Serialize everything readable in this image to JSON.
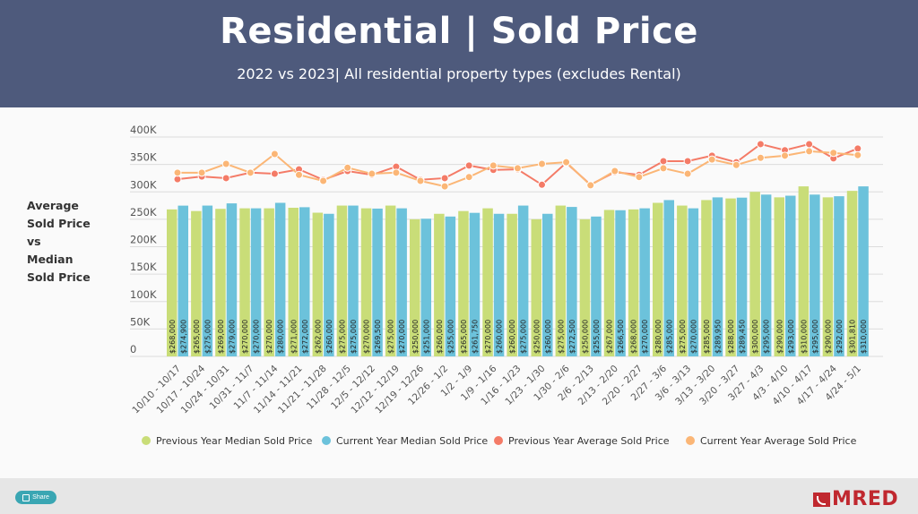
{
  "header": {
    "title": "Residential | Sold Price",
    "subtitle": "2022 vs 2023| All residential property types (excludes Rental)"
  },
  "side_label": [
    "Average",
    "Sold Price",
    "vs",
    "Median",
    "Sold Price"
  ],
  "footer": {
    "share_label": "Share",
    "logo_text": "MRED"
  },
  "colors": {
    "header_bg": "#4e5a7c",
    "prev_median": "#c9dd78",
    "curr_median": "#6cc2db",
    "prev_avg": "#f47b67",
    "curr_avg": "#fbb676",
    "brand": "#c0282f",
    "share": "#3aa6b3"
  },
  "chart_data": {
    "type": "bar",
    "title": "Average Sold Price vs Median Sold Price",
    "xlabel": "",
    "ylabel": "",
    "ylim": [
      0,
      400000
    ],
    "yticks": [
      0,
      50000,
      100000,
      150000,
      200000,
      250000,
      300000,
      350000,
      400000
    ],
    "ytick_labels": [
      "0",
      "50K",
      "100K",
      "150K",
      "200K",
      "250K",
      "300K",
      "350K",
      "400K"
    ],
    "grid": true,
    "legend_position": "bottom",
    "categories": [
      "10/10 - 10/17",
      "10/17 - 10/24",
      "10/24 - 10/31",
      "10/31 - 11/7",
      "11/7 - 11/14",
      "11/14 - 11/21",
      "11/21 - 11/28",
      "11/28 - 12/5",
      "12/5 - 12/12",
      "12/12 - 12/19",
      "12/19 - 12/26",
      "12/26 - 1/2",
      "1/2 - 1/9",
      "1/9 - 1/16",
      "1/16 - 1/23",
      "1/23 - 1/30",
      "1/30 - 2/6",
      "2/6 - 2/13",
      "2/13 - 2/20",
      "2/20 - 2/27",
      "2/27 - 3/6",
      "3/6 - 3/13",
      "3/13 - 3/20",
      "3/20 - 3/27",
      "3/27 - 4/3",
      "4/3 - 4/10",
      "4/10 - 4/17",
      "4/17 - 4/24",
      "4/24 - 5/1"
    ],
    "series": [
      {
        "name": "Previous Year Median Sold Price",
        "kind": "bar",
        "values": [
          268000,
          265000,
          269000,
          270000,
          270000,
          271000,
          262000,
          275000,
          270000,
          275000,
          250000,
          260000,
          265000,
          270000,
          260000,
          250000,
          275000,
          250000,
          267000,
          268000,
          280000,
          275000,
          285000,
          288000,
          300000,
          290000,
          310000,
          290000,
          301810
        ],
        "labels": [
          "$268,000",
          "$265,000",
          "$269,000",
          "$270,000",
          "$270,000",
          "$271,000",
          "$262,000",
          "$275,000",
          "$270,000",
          "$275,000",
          "$250,000",
          "$260,000",
          "$265,000",
          "$270,000",
          "$260,000",
          "$250,000",
          "$275,000",
          "$250,000",
          "$267,000",
          "$268,000",
          "$280,000",
          "$275,000",
          "$285,000",
          "$288,000",
          "$300,000",
          "$290,000",
          "$310,000",
          "$290,000",
          "$301,810"
        ]
      },
      {
        "name": "Current Year Median Sold Price",
        "kind": "bar",
        "values": [
          274900,
          275000,
          279000,
          270000,
          280000,
          272000,
          260000,
          275000,
          269500,
          270000,
          251000,
          255000,
          261750,
          260000,
          275000,
          260000,
          272500,
          255000,
          266500,
          270000,
          285000,
          270000,
          289950,
          289450,
          295000,
          293000,
          295000,
          292000,
          310000
        ],
        "labels": [
          "$274,900",
          "$275,000",
          "$279,000",
          "$270,000",
          "$280,000",
          "$272,000",
          "$260,000",
          "$275,000",
          "$269,500",
          "$270,000",
          "$251,000",
          "$255,000",
          "$261,750",
          "$260,000",
          "$275,000",
          "$260,000",
          "$272,500",
          "$255,000",
          "$266,500",
          "$270,000",
          "$285,000",
          "$270,000",
          "$289,950",
          "$289,450",
          "$295,000",
          "$293,000",
          "$295,000",
          "$292,000",
          "$310,000"
        ]
      },
      {
        "name": "Previous Year Average Sold Price",
        "kind": "line",
        "values": [
          323000,
          328000,
          325000,
          335000,
          333000,
          341000,
          322000,
          338000,
          331000,
          346000,
          322000,
          325000,
          348000,
          340000,
          341000,
          313000,
          353000,
          313000,
          336000,
          331000,
          356000,
          356000,
          366000,
          354000,
          387000,
          376000,
          387000,
          361000,
          379000
        ]
      },
      {
        "name": "Current Year Average Sold Price",
        "kind": "line",
        "values": [
          335000,
          335000,
          351000,
          335000,
          369000,
          331000,
          320000,
          344000,
          333000,
          335000,
          320000,
          310000,
          327000,
          348000,
          343000,
          351000,
          354000,
          312000,
          338000,
          327000,
          343000,
          333000,
          359000,
          349000,
          362000,
          366000,
          374000,
          371000,
          367000
        ]
      }
    ]
  }
}
